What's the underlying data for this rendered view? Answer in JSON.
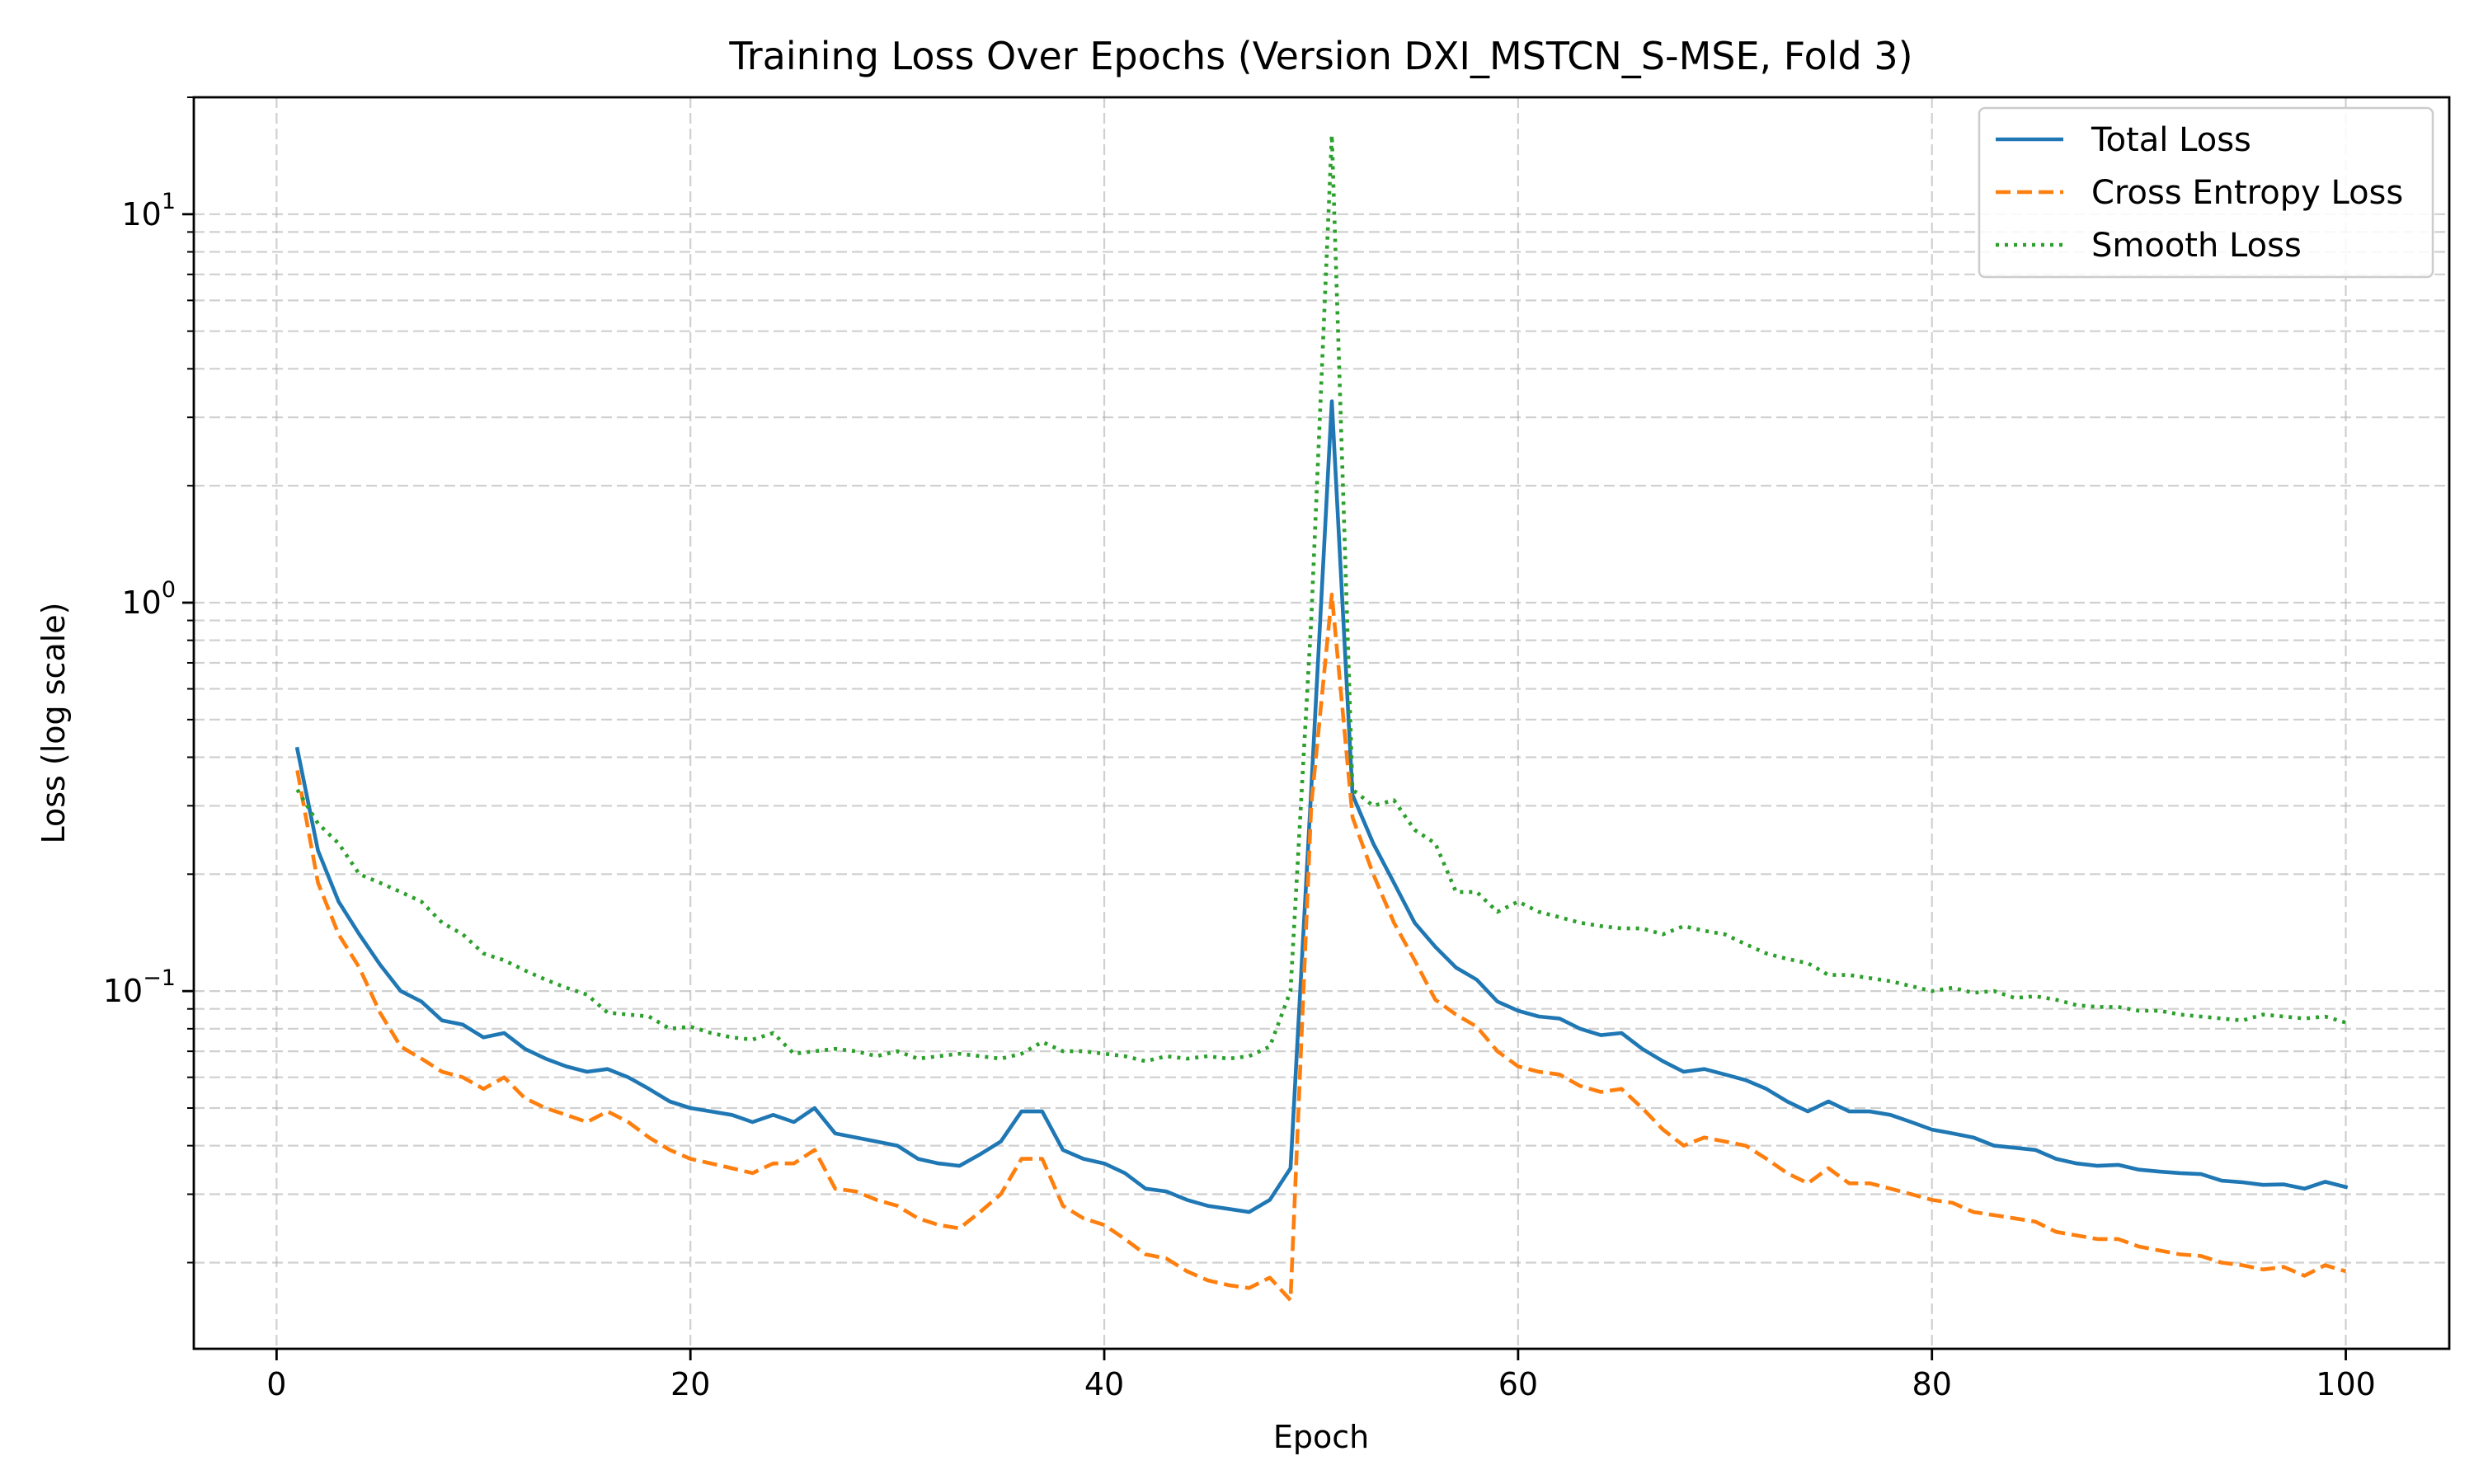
{
  "chart_data": {
    "type": "line",
    "title": "Training Loss Over Epochs (Version DXI_MSTCN_S-MSE, Fold 3)",
    "xlabel": "Epoch",
    "ylabel": "Loss (log scale)",
    "xscale": "linear",
    "yscale": "log",
    "xlim": [
      -4,
      105
    ],
    "ylim": [
      0.012,
      20
    ],
    "xticks": [
      0,
      20,
      40,
      60,
      80,
      100
    ],
    "xtick_labels": [
      "0",
      "20",
      "40",
      "60",
      "80",
      "100"
    ],
    "yticks": [
      0.1,
      1,
      10
    ],
    "grid": true,
    "legend_position": "top-right",
    "x": [
      1,
      2,
      3,
      4,
      5,
      6,
      7,
      8,
      9,
      10,
      11,
      12,
      13,
      14,
      15,
      16,
      17,
      18,
      19,
      20,
      21,
      22,
      23,
      24,
      25,
      26,
      27,
      28,
      29,
      30,
      31,
      32,
      33,
      34,
      35,
      36,
      37,
      38,
      39,
      40,
      41,
      42,
      43,
      44,
      45,
      46,
      47,
      48,
      49,
      50,
      51,
      52,
      53,
      54,
      55,
      56,
      57,
      58,
      59,
      60,
      61,
      62,
      63,
      64,
      65,
      66,
      67,
      68,
      69,
      70,
      71,
      72,
      73,
      74,
      75,
      76,
      77,
      78,
      79,
      80,
      81,
      82,
      83,
      84,
      85,
      86,
      87,
      88,
      89,
      90,
      91,
      92,
      93,
      94,
      95,
      96,
      97,
      98,
      99,
      100
    ],
    "series": [
      {
        "name": "Total Loss",
        "color": "#1f77b4",
        "linestyle": "solid",
        "values": [
          0.42,
          0.23,
          0.17,
          0.14,
          0.117,
          0.1,
          0.094,
          0.084,
          0.082,
          0.076,
          0.078,
          0.071,
          0.067,
          0.064,
          0.062,
          0.063,
          0.06,
          0.056,
          0.052,
          0.05,
          0.049,
          0.048,
          0.046,
          0.048,
          0.046,
          0.05,
          0.043,
          0.042,
          0.041,
          0.04,
          0.037,
          0.036,
          0.0355,
          0.038,
          0.041,
          0.049,
          0.049,
          0.039,
          0.037,
          0.036,
          0.034,
          0.031,
          0.0305,
          0.029,
          0.028,
          0.0275,
          0.027,
          0.029,
          0.035,
          0.33,
          3.3,
          0.32,
          0.24,
          0.19,
          0.15,
          0.13,
          0.115,
          0.107,
          0.094,
          0.089,
          0.086,
          0.085,
          0.08,
          0.077,
          0.078,
          0.071,
          0.066,
          0.062,
          0.063,
          0.061,
          0.059,
          0.056,
          0.052,
          0.049,
          0.052,
          0.049,
          0.049,
          0.048,
          0.046,
          0.044,
          0.043,
          0.042,
          0.04,
          0.0395,
          0.039,
          0.037,
          0.036,
          0.0355,
          0.0357,
          0.0347,
          0.0343,
          0.034,
          0.0338,
          0.0325,
          0.0322,
          0.0317,
          0.0318,
          0.031,
          0.0323,
          0.0313
        ]
      },
      {
        "name": "Cross Entropy Loss",
        "color": "#ff7f0e",
        "linestyle": "dashed",
        "values": [
          0.37,
          0.19,
          0.14,
          0.115,
          0.088,
          0.072,
          0.067,
          0.062,
          0.06,
          0.056,
          0.06,
          0.053,
          0.05,
          0.048,
          0.046,
          0.049,
          0.046,
          0.042,
          0.039,
          0.037,
          0.036,
          0.035,
          0.034,
          0.036,
          0.036,
          0.039,
          0.031,
          0.0305,
          0.029,
          0.028,
          0.026,
          0.025,
          0.0245,
          0.027,
          0.03,
          0.037,
          0.037,
          0.028,
          0.026,
          0.025,
          0.023,
          0.021,
          0.0205,
          0.019,
          0.018,
          0.0175,
          0.0172,
          0.0183,
          0.016,
          0.3,
          1.05,
          0.28,
          0.2,
          0.15,
          0.12,
          0.095,
          0.087,
          0.081,
          0.07,
          0.064,
          0.062,
          0.061,
          0.057,
          0.055,
          0.056,
          0.05,
          0.044,
          0.04,
          0.042,
          0.041,
          0.04,
          0.037,
          0.034,
          0.032,
          0.035,
          0.032,
          0.032,
          0.031,
          0.03,
          0.029,
          0.0285,
          0.027,
          0.0265,
          0.026,
          0.0255,
          0.024,
          0.0235,
          0.023,
          0.023,
          0.022,
          0.0215,
          0.021,
          0.0208,
          0.02,
          0.0197,
          0.0192,
          0.0195,
          0.0185,
          0.0197,
          0.019
        ]
      },
      {
        "name": "Smooth Loss",
        "color": "#2ca02c",
        "linestyle": "dotted",
        "values": [
          0.33,
          0.27,
          0.24,
          0.2,
          0.19,
          0.18,
          0.17,
          0.15,
          0.14,
          0.125,
          0.12,
          0.113,
          0.107,
          0.102,
          0.098,
          0.088,
          0.087,
          0.086,
          0.08,
          0.081,
          0.078,
          0.076,
          0.075,
          0.078,
          0.069,
          0.07,
          0.071,
          0.07,
          0.068,
          0.07,
          0.067,
          0.068,
          0.069,
          0.068,
          0.067,
          0.069,
          0.074,
          0.07,
          0.07,
          0.069,
          0.068,
          0.066,
          0.068,
          0.067,
          0.068,
          0.067,
          0.068,
          0.072,
          0.1,
          0.9,
          16.0,
          0.33,
          0.3,
          0.31,
          0.26,
          0.24,
          0.18,
          0.18,
          0.16,
          0.17,
          0.16,
          0.155,
          0.15,
          0.147,
          0.145,
          0.145,
          0.14,
          0.147,
          0.143,
          0.14,
          0.132,
          0.125,
          0.121,
          0.118,
          0.11,
          0.11,
          0.108,
          0.106,
          0.103,
          0.1,
          0.102,
          0.099,
          0.1,
          0.096,
          0.097,
          0.095,
          0.092,
          0.091,
          0.091,
          0.089,
          0.089,
          0.087,
          0.086,
          0.085,
          0.084,
          0.087,
          0.086,
          0.085,
          0.086,
          0.083
        ]
      }
    ]
  }
}
